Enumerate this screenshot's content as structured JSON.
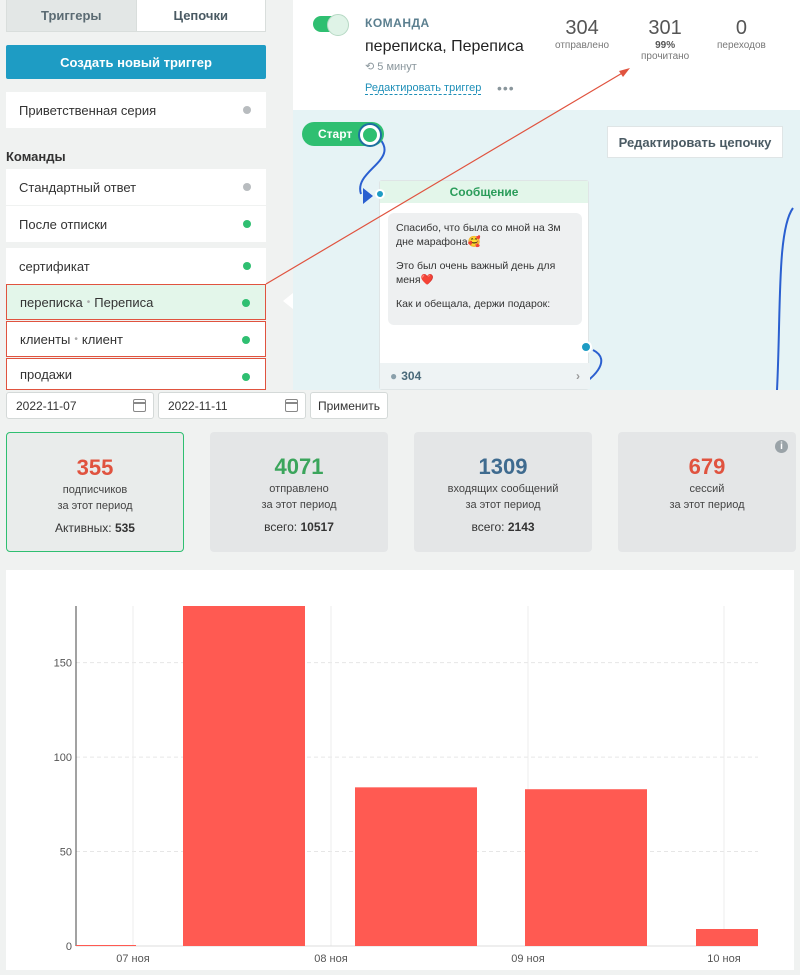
{
  "left": {
    "tabs": [
      "Триггеры",
      "Цепочки"
    ],
    "create_label": "Создать новый триггер",
    "welcome_label": "Приветственная серия",
    "section_title": "Команды",
    "commands": [
      {
        "label": "Стандартный ответ",
        "alias": "",
        "status": "grey"
      },
      {
        "label": "После отписки",
        "alias": "",
        "status": "green"
      },
      {
        "label": "сертификат",
        "alias": "",
        "status": "green"
      },
      {
        "label": "переписка",
        "alias": "Переписа",
        "status": "green"
      },
      {
        "label": "клиенты",
        "alias": "клиент",
        "status": "green"
      },
      {
        "label": "продажи",
        "alias": "",
        "status": "green"
      }
    ]
  },
  "header": {
    "label": "КОМАНДА",
    "title": "переписка, Переписа",
    "time": "5 минут",
    "edit_label": "Редактировать триггер",
    "more": "•••",
    "sent_value": "304",
    "sent_label": "отправлено",
    "read_value": "301",
    "read_percent": "99%",
    "read_label": "прочитано",
    "clicks_value": "0",
    "clicks_label": "переходов"
  },
  "flow": {
    "start_label": "Старт",
    "edit_chain_label": "Редактировать цепочку",
    "message_title": "Сообщение",
    "message_lines": [
      "Спасибо, что была со мной на 3м дне марафона🥰",
      "Это был очень важный день для меня❤️",
      "Как и обещала, держи подарок:"
    ],
    "recipients": "304",
    "chevron": "›"
  },
  "dates": {
    "from": "2022-11-07",
    "to": "2022-11-11",
    "apply_label": "Применить"
  },
  "cards": [
    {
      "value": "355",
      "label1": "подписчиков",
      "label2": "за этот период",
      "total_label": "Активных:",
      "total_value": "535",
      "color": "#e0533f"
    },
    {
      "value": "4071",
      "label1": "отправлено",
      "label2": "за этот период",
      "total_label": "всего:",
      "total_value": "10517",
      "color": "#3ba55c"
    },
    {
      "value": "1309",
      "label1": "входящих сообщений",
      "label2": "за этот период",
      "total_label": "всего:",
      "total_value": "2143",
      "color": "#3f6b8f"
    },
    {
      "value": "679",
      "label1": "сессий",
      "label2": "за этот период",
      "total_label": "",
      "total_value": "",
      "color": "#e0533f"
    }
  ],
  "info_icon": "i",
  "chart_data": {
    "type": "bar",
    "categories": [
      "07 ноя",
      "08 ноя",
      "09 ноя",
      "10 ноя"
    ],
    "x": [
      0,
      0.63,
      1.5,
      2.37,
      3.1
    ],
    "values": [
      0,
      180,
      84,
      83,
      9
    ],
    "tick_labels": [
      "07 ноя",
      "08 ноя",
      "09 ноя",
      "10 ноя"
    ],
    "yticks": [
      0,
      50,
      100,
      150
    ],
    "ylim": [
      0,
      180
    ],
    "color": "#ff5a52",
    "grid": true
  }
}
